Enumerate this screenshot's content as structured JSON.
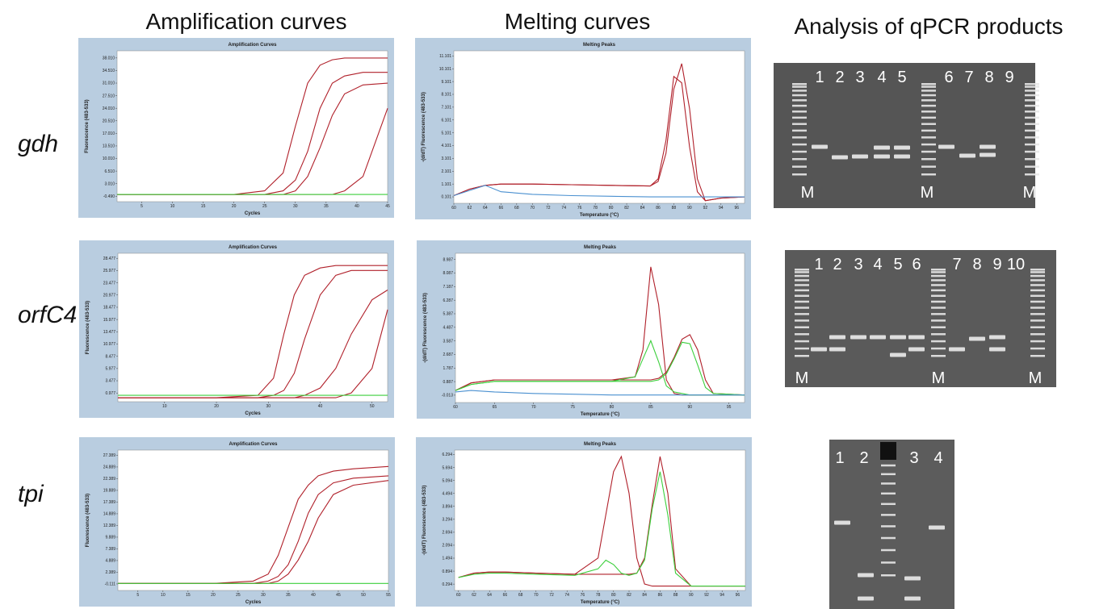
{
  "headings": [
    "Amplification curves",
    "Melting curves",
    "Analysis of qPCR products"
  ],
  "row_labels": [
    "gdh",
    "orfC4",
    "tpi"
  ],
  "gels": [
    {
      "lanes": [
        "1",
        "2",
        "3",
        "4",
        "5",
        "6",
        "7",
        "8",
        "9"
      ],
      "markers": [
        "M",
        "M",
        "M"
      ]
    },
    {
      "lanes": [
        "1",
        "2",
        "3",
        "4",
        "5",
        "6",
        "7",
        "8",
        "9",
        "10"
      ],
      "markers": [
        "M",
        "M",
        "M"
      ]
    },
    {
      "lanes": [
        "1",
        "2",
        "3",
        "4"
      ]
    }
  ],
  "chart_data": [
    {
      "type": "line",
      "title": "Amplification Curves",
      "xlabel": "Cycles",
      "ylabel": "Fluorescence (483-533)",
      "x": [
        1,
        10,
        20,
        25,
        28,
        30,
        32,
        34,
        36,
        38,
        41,
        45
      ],
      "xlim": [
        1,
        45
      ],
      "xticks": [
        5,
        10,
        15,
        20,
        25,
        30,
        35,
        40,
        45
      ],
      "ylim": [
        -2,
        40
      ],
      "yticks": [
        {
          "value": -0.49,
          "label": "-0.490"
        },
        {
          "value": 3.01,
          "label": "3.010"
        },
        {
          "value": 6.51,
          "label": "6.510"
        },
        {
          "value": 10.01,
          "label": "10.010"
        },
        {
          "value": 13.51,
          "label": "13.510"
        },
        {
          "value": 17.01,
          "label": "17.010"
        },
        {
          "value": 20.51,
          "label": "20.510"
        },
        {
          "value": 24.01,
          "label": "24.010"
        },
        {
          "value": 27.51,
          "label": "27.510"
        },
        {
          "value": 31.01,
          "label": "31.010"
        },
        {
          "value": 34.51,
          "label": "34.510"
        },
        {
          "value": 38.01,
          "label": "38.010"
        }
      ],
      "series": [
        {
          "color": "#b0202a",
          "values": [
            0,
            0,
            0,
            1,
            6,
            19,
            31,
            36,
            37.5,
            38,
            38,
            38
          ]
        },
        {
          "color": "#b0202a",
          "values": [
            0,
            0,
            0,
            0,
            1,
            4,
            12,
            24,
            31,
            33,
            34,
            34
          ]
        },
        {
          "color": "#b0202a",
          "values": [
            0,
            0,
            0,
            0,
            0,
            1,
            5,
            13,
            22,
            28,
            30.5,
            31
          ]
        },
        {
          "color": "#b0202a",
          "values": [
            0,
            0,
            0,
            0,
            0,
            0,
            0,
            0,
            0,
            1,
            5,
            24
          ]
        },
        {
          "color": "#3ccf3c",
          "values": [
            0,
            0,
            0,
            0,
            0,
            0,
            0,
            0,
            0,
            0,
            0,
            0
          ]
        }
      ]
    },
    {
      "type": "line",
      "title": "Melting Peaks",
      "xlabel": "Temperature (°C)",
      "ylabel": "-(d/dT) Fluorescence (483-533)",
      "x": [
        60,
        62,
        64,
        66,
        70,
        75,
        80,
        85,
        86,
        87,
        88,
        89,
        90,
        91,
        92,
        94,
        97
      ],
      "xlim": [
        60,
        97
      ],
      "xticks": [
        60,
        62,
        64,
        66,
        68,
        70,
        72,
        74,
        76,
        78,
        80,
        82,
        84,
        86,
        88,
        90,
        92,
        94,
        96
      ],
      "ylim": [
        -0.4,
        11.5
      ],
      "yticks": [
        0.101,
        1.101,
        2.101,
        3.101,
        4.101,
        5.101,
        6.101,
        7.101,
        8.101,
        9.101,
        10.101,
        11.101
      ],
      "series": [
        {
          "color": "#b0202a",
          "values": [
            0.2,
            0.7,
            1.0,
            1.1,
            1.1,
            1.05,
            1.0,
            0.95,
            1.3,
            3.5,
            8.5,
            10.5,
            7,
            1.5,
            -0.2,
            0.0,
            0.1
          ]
        },
        {
          "color": "#b0202a",
          "values": [
            0.2,
            0.7,
            1.0,
            1.1,
            1.1,
            1.05,
            1.0,
            0.95,
            1.5,
            4.5,
            9.5,
            9,
            4,
            0.5,
            -0.2,
            0.0,
            0.1
          ]
        },
        {
          "color": "#4a90d0",
          "values": [
            0.2,
            0.6,
            1.0,
            0.5,
            0.3,
            0.2,
            0.15,
            0.1,
            0.1,
            0.1,
            0.1,
            0.1,
            0.1,
            0.1,
            0.1,
            0.1,
            0.1
          ]
        }
      ]
    },
    {
      "type": "line",
      "title": "Amplification Curves",
      "xlabel": "Cycles",
      "ylabel": "Fluorescence (483-533)",
      "x": [
        1,
        10,
        20,
        28,
        31,
        33,
        35,
        37,
        40,
        43,
        46,
        50,
        53
      ],
      "xlim": [
        1,
        53
      ],
      "xticks": [
        10,
        20,
        30,
        40,
        50
      ],
      "ylim": [
        -0.8,
        29.5
      ],
      "yticks": [
        0.977,
        3.477,
        5.977,
        8.477,
        10.977,
        13.477,
        15.977,
        18.477,
        20.977,
        23.477,
        25.977,
        28.477
      ],
      "series": [
        {
          "color": "#b0202a",
          "values": [
            0,
            0,
            0,
            0.5,
            4,
            13,
            21,
            25,
            26.5,
            27,
            27,
            27,
            27
          ]
        },
        {
          "color": "#b0202a",
          "values": [
            0,
            0,
            0,
            0,
            0.5,
            1.5,
            5,
            12,
            21,
            25,
            26,
            26,
            26
          ]
        },
        {
          "color": "#b0202a",
          "values": [
            0,
            0,
            0,
            0,
            0,
            0,
            0,
            0.5,
            2,
            6,
            13,
            20,
            22
          ]
        },
        {
          "color": "#b0202a",
          "values": [
            0,
            0,
            0,
            0,
            0,
            0,
            0,
            0,
            0,
            0,
            1,
            6,
            18
          ]
        },
        {
          "color": "#3ccf3c",
          "values": [
            0.5,
            0.5,
            0.5,
            0.5,
            0.5,
            0.5,
            0.5,
            0.5,
            0.5,
            0.5,
            0.5,
            0.5,
            0.5
          ]
        }
      ]
    },
    {
      "type": "line",
      "title": "Melting Peaks",
      "xlabel": "Temperature (°C)",
      "ylabel": "-(d/dT) Fluorescence (483-533)",
      "x": [
        60,
        62,
        65,
        70,
        75,
        80,
        83,
        84,
        85,
        86,
        87,
        88,
        89,
        90,
        91,
        92,
        93,
        97
      ],
      "xlim": [
        60,
        97
      ],
      "xticks": [
        60,
        65,
        70,
        75,
        80,
        85,
        90,
        95
      ],
      "ylim": [
        -0.5,
        9.4
      ],
      "yticks": [
        -0.013,
        0.887,
        1.787,
        2.687,
        3.587,
        4.487,
        5.387,
        6.287,
        7.187,
        8.087,
        8.987
      ],
      "series": [
        {
          "color": "#b0202a",
          "values": [
            0.3,
            0.8,
            1.0,
            1.0,
            1.0,
            1.0,
            1.2,
            3,
            8.5,
            6,
            1,
            0.1,
            0,
            0,
            0,
            0,
            0,
            0
          ]
        },
        {
          "color": "#b0202a",
          "values": [
            0.3,
            0.8,
            1.0,
            1.0,
            1.0,
            1.0,
            1.0,
            1.0,
            1.0,
            1.1,
            1.5,
            2.5,
            3.7,
            4.0,
            3.0,
            1.0,
            0.1,
            0
          ]
        },
        {
          "color": "#3ccf3c",
          "values": [
            0.3,
            0.7,
            0.9,
            0.9,
            0.9,
            0.9,
            1.2,
            2.4,
            3.6,
            2.2,
            0.6,
            0.2,
            0.1,
            0,
            0,
            0,
            0,
            0
          ]
        },
        {
          "color": "#3ccf3c",
          "values": [
            0.3,
            0.7,
            0.9,
            0.9,
            0.9,
            0.9,
            0.9,
            0.9,
            0.9,
            1.0,
            1.4,
            2.4,
            3.5,
            3.4,
            2.0,
            0.5,
            0.1,
            0
          ]
        },
        {
          "color": "#4a90d0",
          "values": [
            0.2,
            0.3,
            0.2,
            0.1,
            0.05,
            0,
            0,
            0,
            0,
            0,
            0,
            0,
            0,
            0,
            0,
            0,
            0,
            0
          ]
        }
      ]
    },
    {
      "type": "line",
      "title": "Amplification Curves",
      "xlabel": "Cycles",
      "ylabel": "Fluorescence (483-533)",
      "x": [
        1,
        10,
        20,
        28,
        31,
        33,
        35,
        37,
        39,
        41,
        44,
        48,
        55
      ],
      "xlim": [
        1,
        55
      ],
      "xticks": [
        5,
        10,
        15,
        20,
        25,
        30,
        35,
        40,
        45,
        50,
        55
      ],
      "ylim": [
        -1.5,
        28.5
      ],
      "yticks": [
        -0.111,
        2.389,
        4.889,
        7.389,
        9.889,
        12.389,
        14.889,
        17.389,
        19.889,
        22.389,
        24.889,
        27.389
      ],
      "series": [
        {
          "color": "#b0202a",
          "values": [
            0,
            0,
            0,
            0.5,
            2,
            6,
            12,
            18,
            21,
            23,
            24,
            24.5,
            25
          ]
        },
        {
          "color": "#b0202a",
          "values": [
            0,
            0,
            0,
            0,
            0.5,
            1.5,
            4,
            9,
            15,
            19,
            21.5,
            22.5,
            23
          ]
        },
        {
          "color": "#b0202a",
          "values": [
            0,
            0,
            0,
            0,
            0,
            0.5,
            2,
            5,
            9,
            14,
            19,
            21,
            22
          ]
        },
        {
          "color": "#3ccf3c",
          "values": [
            0,
            0,
            0,
            0,
            0,
            0,
            0,
            0,
            0,
            0,
            0,
            0,
            0
          ]
        }
      ]
    },
    {
      "type": "line",
      "title": "Melting Peaks",
      "xlabel": "Temperature (°C)",
      "ylabel": "-(d/dT) Fluorescence (483-533)",
      "x": [
        60,
        62,
        64,
        66,
        70,
        75,
        78,
        79,
        80,
        81,
        82,
        83,
        84,
        85,
        86,
        87,
        88,
        90,
        97
      ],
      "xlim": [
        59.5,
        97
      ],
      "xticks": [
        60,
        62,
        64,
        66,
        68,
        70,
        72,
        74,
        76,
        78,
        80,
        82,
        84,
        86,
        88,
        90,
        92,
        94,
        96
      ],
      "ylim": [
        0,
        6.5
      ],
      "yticks": [
        0.294,
        0.894,
        1.494,
        2.094,
        2.694,
        3.294,
        3.894,
        4.494,
        5.094,
        5.694,
        6.294
      ],
      "series": [
        {
          "color": "#b0202a",
          "values": [
            0.6,
            0.8,
            0.85,
            0.85,
            0.8,
            0.75,
            1.5,
            3.5,
            5.5,
            6.2,
            4.5,
            1.5,
            0.3,
            0.2,
            0.2,
            0.2,
            0.2,
            0.2,
            0.2
          ]
        },
        {
          "color": "#b0202a",
          "values": [
            0.6,
            0.8,
            0.85,
            0.85,
            0.8,
            0.75,
            0.75,
            0.75,
            0.75,
            0.75,
            0.75,
            0.8,
            1.5,
            4,
            6.2,
            4.5,
            1,
            0.2,
            0.2
          ]
        },
        {
          "color": "#3ccf3c",
          "values": [
            0.6,
            0.75,
            0.8,
            0.8,
            0.75,
            0.7,
            1.0,
            1.4,
            1.2,
            0.8,
            0.7,
            0.8,
            1.4,
            3.8,
            5.5,
            3.5,
            0.8,
            0.2,
            0.2
          ]
        }
      ]
    }
  ]
}
